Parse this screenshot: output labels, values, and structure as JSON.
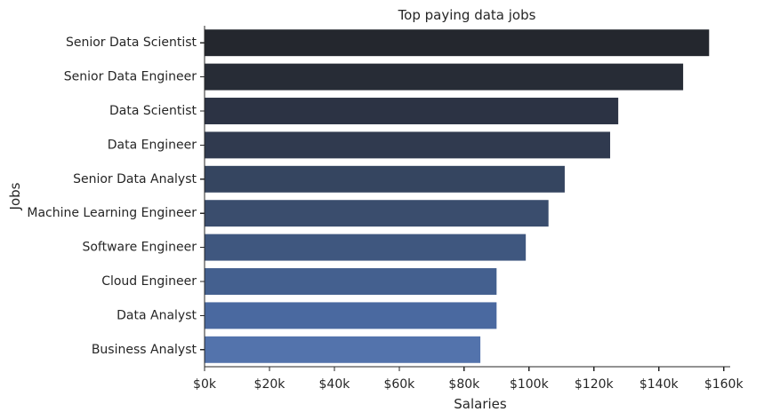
{
  "chart_data": {
    "type": "bar",
    "orientation": "horizontal",
    "title": "Top paying data jobs",
    "xlabel": "Salaries",
    "ylabel": "Jobs",
    "categories": [
      "Senior Data Scientist",
      "Senior Data Engineer",
      "Data Scientist",
      "Data Engineer",
      "Senior Data Analyst",
      "Machine Learning Engineer",
      "Software Engineer",
      "Cloud Engineer",
      "Data Analyst",
      "Business Analyst"
    ],
    "values": [
      155500,
      147500,
      127500,
      125000,
      111000,
      106000,
      99000,
      90000,
      90000,
      85000
    ],
    "xlim": [
      0,
      162000
    ],
    "x_ticks": [
      0,
      20000,
      40000,
      60000,
      80000,
      100000,
      120000,
      140000,
      160000
    ],
    "x_tick_labels": [
      "$0k",
      "$20k",
      "$40k",
      "$60k",
      "$80k",
      "$100k",
      "$120k",
      "$140k",
      "$160k"
    ],
    "grid": false,
    "colors": [
      "#24272e",
      "#272c36",
      "#2c3344",
      "#303a4f",
      "#354560",
      "#3a4d6d",
      "#3f577f",
      "#44608f",
      "#4a69a0",
      "#5373ac"
    ]
  }
}
